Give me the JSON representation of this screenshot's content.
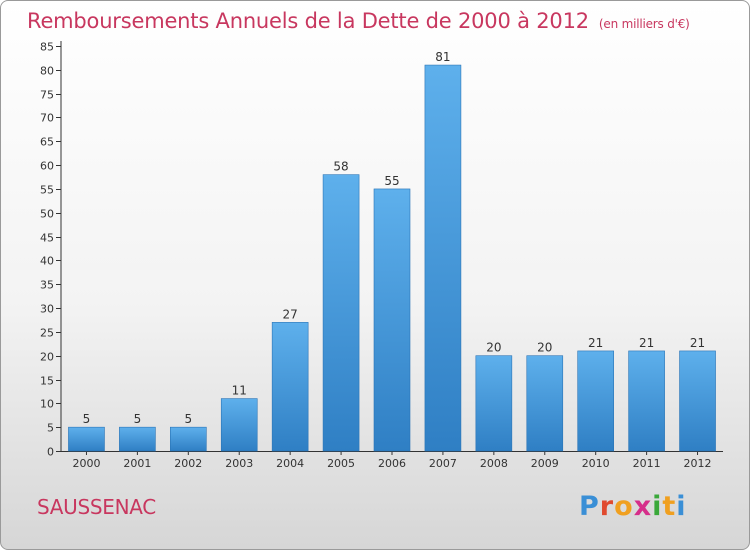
{
  "chart_data": {
    "type": "bar",
    "title": "Remboursements Annuels de la Dette de 2000 à 2012",
    "unit_note": "(en milliers d'€)",
    "categories": [
      "2000",
      "2001",
      "2002",
      "2003",
      "2004",
      "2005",
      "2006",
      "2007",
      "2008",
      "2009",
      "2010",
      "2011",
      "2012"
    ],
    "values": [
      5,
      5,
      5,
      11,
      27,
      58,
      55,
      81,
      20,
      20,
      21,
      21,
      21
    ],
    "ylim": [
      0,
      85
    ],
    "yticks": [
      0,
      5,
      10,
      15,
      20,
      25,
      30,
      35,
      40,
      45,
      50,
      55,
      60,
      65,
      70,
      75,
      80,
      85
    ],
    "grid": false,
    "bar_color": "#4a9edf"
  },
  "commune": "SAUSSENAC",
  "logo": {
    "letters": [
      "P",
      "r",
      "o",
      "x",
      "i",
      "t",
      "i"
    ],
    "colors": [
      "#3a8fd6",
      "#e04a2f",
      "#f0a020",
      "#d62f8a",
      "#3aa83a",
      "#f0a020",
      "#3a8fd6"
    ]
  }
}
